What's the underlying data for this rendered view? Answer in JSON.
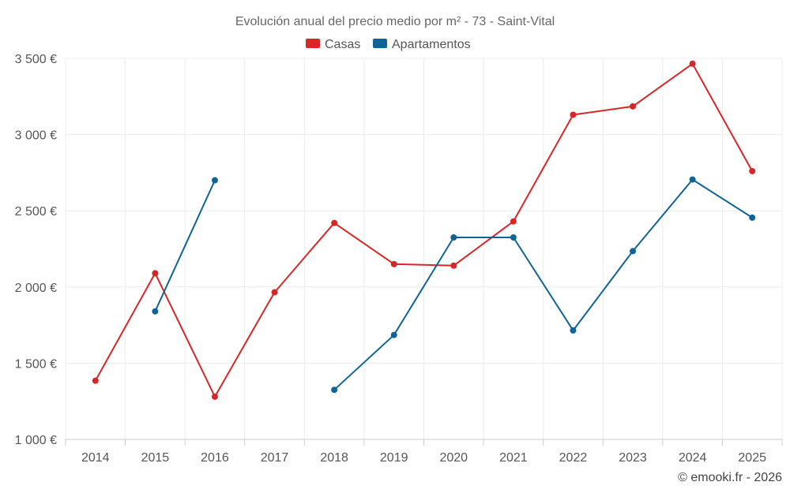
{
  "chart_data": {
    "type": "line",
    "title": "Evolución anual del precio medio por m² - 73 - Saint-Vital",
    "categories": [
      "2014",
      "2015",
      "2016",
      "2017",
      "2018",
      "2019",
      "2020",
      "2021",
      "2022",
      "2023",
      "2024",
      "2025"
    ],
    "ylim": [
      1000,
      3500
    ],
    "yticks": [
      1000,
      1500,
      2000,
      2500,
      3000,
      3500
    ],
    "ytick_labels": [
      "1 000 €",
      "1 500 €",
      "2 000 €",
      "2 500 €",
      "3 000 €",
      "3 500 €"
    ],
    "xlabel": "",
    "ylabel": "",
    "grid": true,
    "legend_position": "top-center",
    "series": [
      {
        "name": "Casas",
        "color": "#d62728",
        "values": [
          1385,
          2090,
          1280,
          1965,
          2420,
          2150,
          2140,
          2430,
          3130,
          3185,
          3465,
          2760
        ]
      },
      {
        "name": "Apartamentos",
        "color": "#0f6496",
        "values": [
          null,
          1840,
          2700,
          null,
          1325,
          1685,
          2325,
          2325,
          1715,
          2235,
          2705,
          2455
        ]
      }
    ],
    "credit": "© emooki.fr - 2026"
  }
}
